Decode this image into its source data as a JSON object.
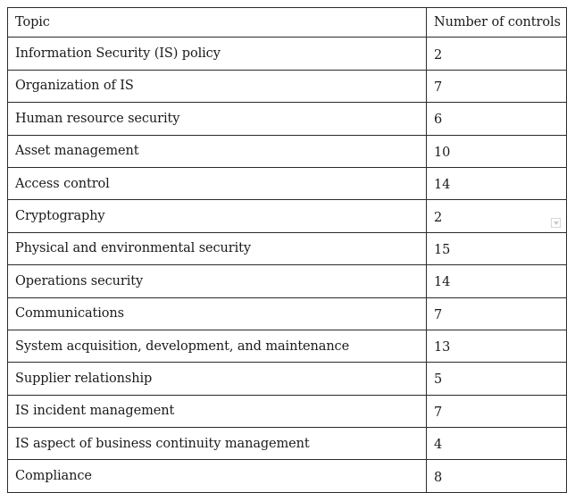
{
  "table": {
    "headers": [
      "Topic",
      "Number of controls"
    ],
    "rows": [
      [
        "Information Security (IS) policy",
        "2"
      ],
      [
        "Organization of IS",
        "7"
      ],
      [
        "Human resource security",
        "6"
      ],
      [
        "Asset management",
        "10"
      ],
      [
        "Access control",
        "14"
      ],
      [
        "Cryptography",
        "2"
      ],
      [
        "Physical and environmental security",
        "15"
      ],
      [
        "Operations security",
        "14"
      ],
      [
        "Communications",
        "7"
      ],
      [
        "System acquisition, development, and maintenance",
        "13"
      ],
      [
        "Supplier relationship",
        "5"
      ],
      [
        "IS incident management",
        "7"
      ],
      [
        "IS aspect of business continuity management",
        "4"
      ],
      [
        "Compliance",
        "8"
      ]
    ]
  },
  "icons": {
    "cell_dropdown": "chevron-down-icon"
  }
}
